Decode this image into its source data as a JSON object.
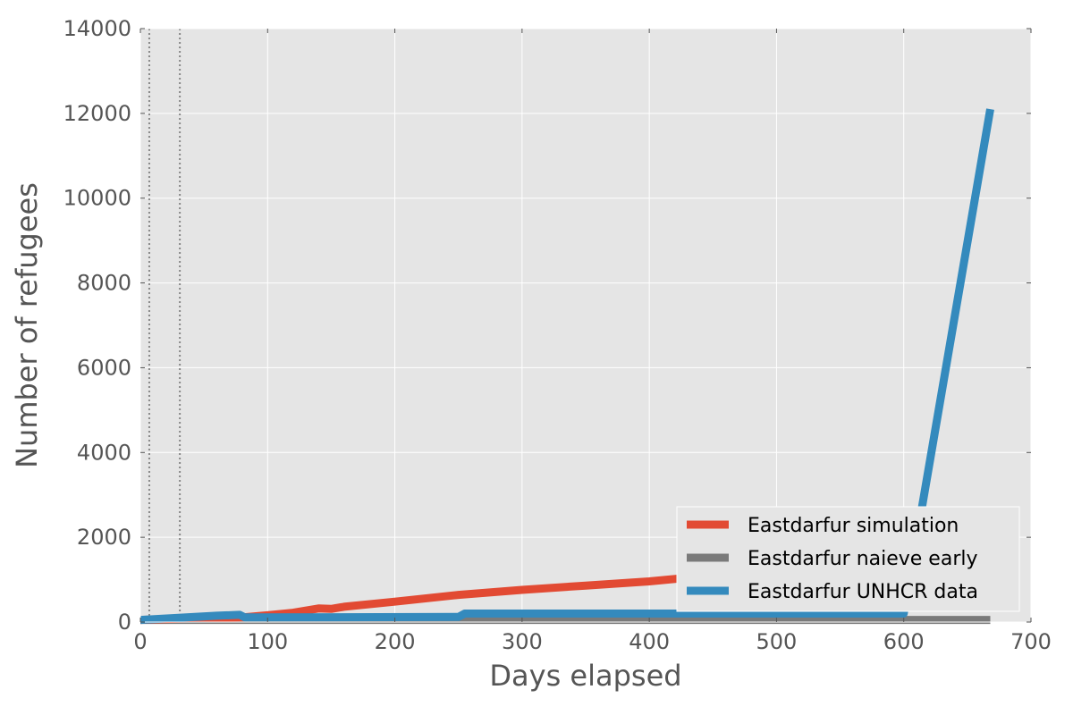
{
  "chart_data": {
    "type": "line",
    "xlabel": "Days elapsed",
    "ylabel": "Number of refugees",
    "xlim": [
      0,
      700
    ],
    "ylim": [
      0,
      14000
    ],
    "xticks": [
      "0",
      "100",
      "200",
      "300",
      "400",
      "500",
      "600",
      "700"
    ],
    "yticks": [
      "0",
      "2000",
      "4000",
      "6000",
      "8000",
      "10000",
      "12000",
      "14000"
    ],
    "grid": true,
    "legend_position": "lower-right",
    "vertical_markers": [
      7,
      31
    ],
    "series": [
      {
        "name": "Eastdarfur simulation",
        "color": "#e24a33",
        "x": [
          0,
          30,
          60,
          80,
          100,
          120,
          140,
          150,
          160,
          200,
          250,
          300,
          350,
          400,
          450
        ],
        "y": [
          50,
          80,
          100,
          110,
          160,
          220,
          320,
          310,
          360,
          480,
          640,
          760,
          860,
          960,
          1100
        ]
      },
      {
        "name": "Eastdarfur naieve early",
        "color": "#7a7a7a",
        "x": [
          0,
          668
        ],
        "y": [
          50,
          50
        ]
      },
      {
        "name": "Eastdarfur UNHCR data",
        "color": "#348abd",
        "x": [
          0,
          30,
          60,
          78,
          82,
          250,
          255,
          600,
          668
        ],
        "y": [
          50,
          100,
          150,
          170,
          110,
          120,
          200,
          200,
          12100
        ]
      }
    ]
  }
}
